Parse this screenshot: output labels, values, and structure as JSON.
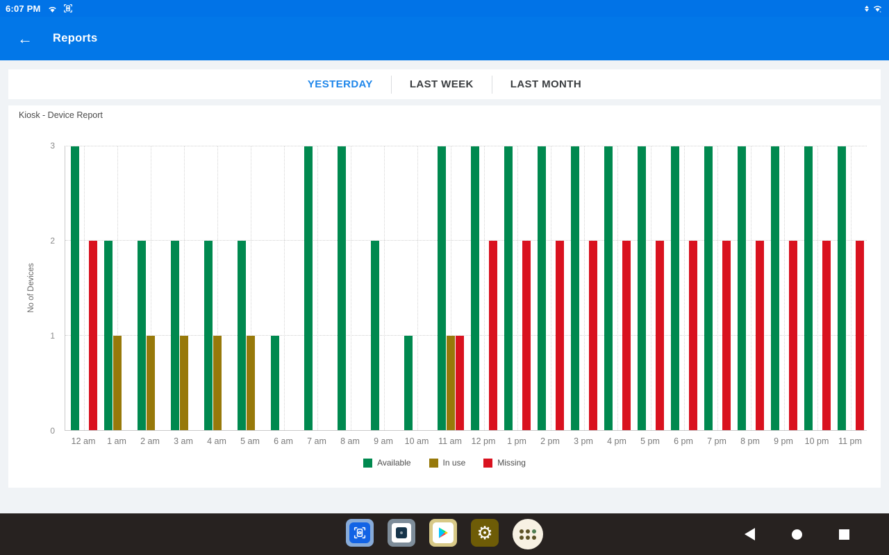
{
  "status_bar": {
    "time": "6:07 PM",
    "left_icons": [
      "wifi-icon",
      "screen-pin-icon"
    ],
    "right_icons": [
      "data-transfer-icon",
      "network-icon"
    ]
  },
  "app_bar": {
    "title": "Reports",
    "back_icon": "arrow-left-icon"
  },
  "tabs": [
    {
      "label": "YESTERDAY",
      "active": true
    },
    {
      "label": "LAST WEEK",
      "active": false
    },
    {
      "label": "LAST MONTH",
      "active": false
    }
  ],
  "chart_data": {
    "type": "bar",
    "title": "Kiosk - Device Report",
    "xlabel": "",
    "ylabel": "No of Devices",
    "ylim": [
      0,
      3
    ],
    "yticks": [
      0,
      1,
      2,
      3
    ],
    "grid": true,
    "legend_position": "bottom",
    "categories": [
      "12 am",
      "1 am",
      "2 am",
      "3 am",
      "4 am",
      "5 am",
      "6 am",
      "7 am",
      "8 am",
      "9 am",
      "10 am",
      "11 am",
      "12 pm",
      "1 pm",
      "2 pm",
      "3 pm",
      "4 pm",
      "5 pm",
      "6 pm",
      "7 pm",
      "8 pm",
      "9 pm",
      "10 pm",
      "11 pm"
    ],
    "series": [
      {
        "name": "Available",
        "color": "#00894F",
        "values": [
          3,
          2,
          2,
          2,
          2,
          2,
          1,
          3,
          3,
          2,
          1,
          3,
          3,
          3,
          3,
          3,
          3,
          3,
          3,
          3,
          3,
          3,
          3,
          3
        ]
      },
      {
        "name": "In use",
        "color": "#97790A",
        "values": [
          0,
          1,
          1,
          1,
          1,
          1,
          0,
          0,
          0,
          0,
          0,
          1,
          0,
          0,
          0,
          0,
          0,
          0,
          0,
          0,
          0,
          0,
          0,
          0
        ]
      },
      {
        "name": "Missing",
        "color": "#D9121F",
        "values": [
          2,
          0,
          0,
          0,
          0,
          0,
          0,
          0,
          0,
          0,
          0,
          1,
          2,
          2,
          2,
          2,
          2,
          2,
          2,
          2,
          2,
          2,
          2,
          2
        ]
      }
    ]
  },
  "dock": {
    "icons": [
      "kiosk-app-icon",
      "secure-app-icon",
      "play-store-icon",
      "settings-app-icon",
      "app-drawer-icon"
    ]
  },
  "system_nav": {
    "icons": [
      "back-triangle-icon",
      "home-circle-icon",
      "recents-square-icon"
    ]
  },
  "colors": {
    "status_bar": "#0173e7",
    "app_bar": "#0277e8",
    "active_tab": "#1e86ea",
    "background": "#f0f3f6",
    "nav_bar": "#272220",
    "available": "#00894F",
    "in_use": "#97790A",
    "missing": "#D9121F"
  }
}
